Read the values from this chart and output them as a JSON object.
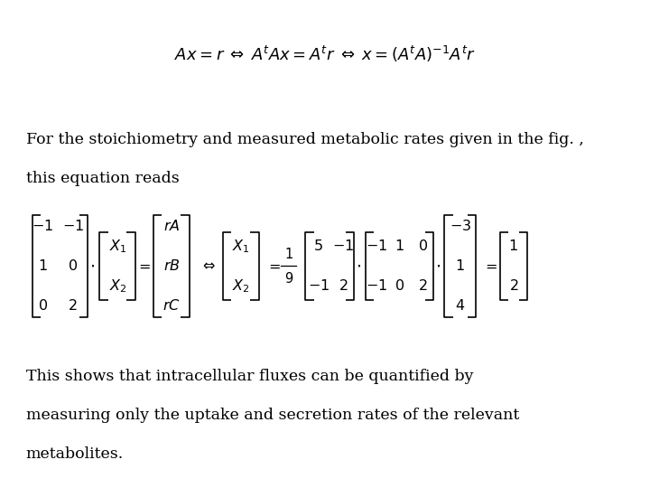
{
  "background_color": "#ffffff",
  "fig_width": 7.2,
  "fig_height": 5.4,
  "dpi": 100,
  "text1_line1": "For the stoichiometry and measured metabolic rates given in the fig. ,",
  "text1_line2": "this equation reads",
  "text2_line1": "This shows that intracellular fluxes can be quantified by",
  "text2_line2": "measuring only the uptake and secretion rates of the relevant",
  "text2_line3": "metabolites.",
  "font_size_eq": 13,
  "font_size_text": 12.5,
  "text_color": "#000000"
}
